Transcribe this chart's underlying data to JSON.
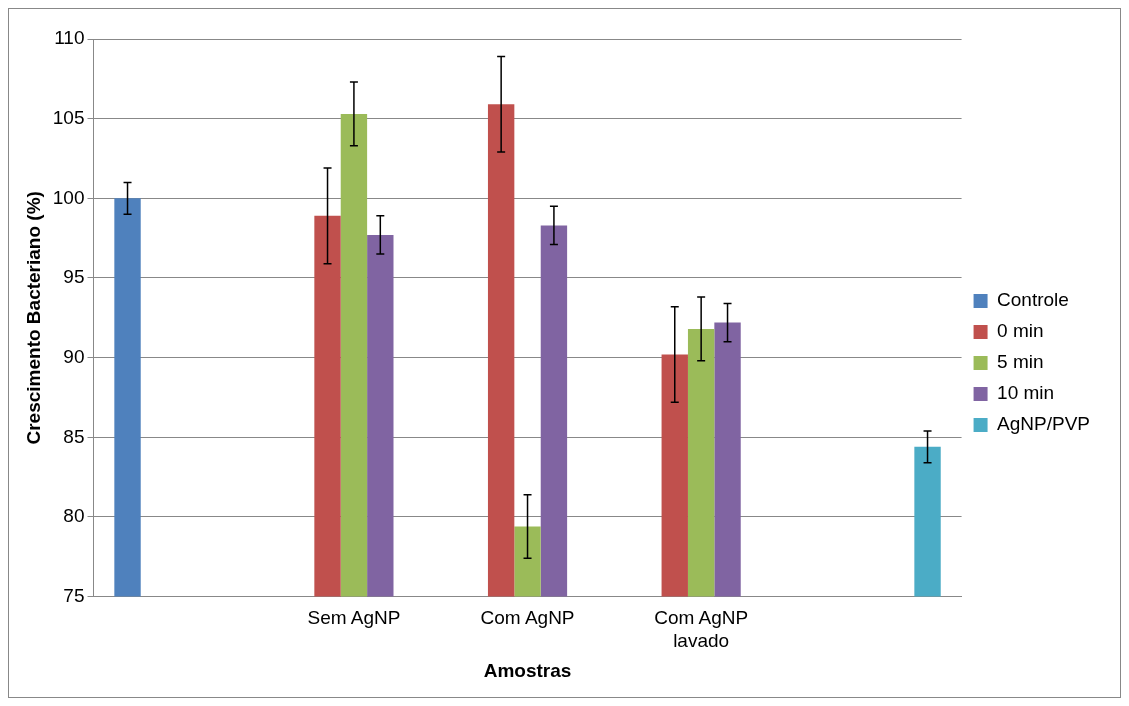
{
  "chart_data": {
    "type": "bar",
    "xlabel": "Amostras",
    "ylabel": "Crescimento Bacteriano (%)",
    "categories": [
      null,
      "Sem AgNP",
      "Com AgNP",
      "Com AgNP\nlavado",
      null
    ],
    "series": [
      {
        "name": "Controle",
        "color": "#4f81bd",
        "values": [
          100,
          null,
          null,
          null,
          null
        ],
        "errors": [
          1,
          null,
          null,
          null,
          null
        ]
      },
      {
        "name": "0 min",
        "color": "#c0504d",
        "values": [
          null,
          98.9,
          105.9,
          90.2,
          null
        ],
        "errors": [
          null,
          3,
          3,
          3,
          null
        ]
      },
      {
        "name": "5 min",
        "color": "#9bbb59",
        "values": [
          null,
          105.3,
          79.4,
          91.8,
          null
        ],
        "errors": [
          null,
          2,
          2,
          2,
          null
        ]
      },
      {
        "name": "10 min",
        "color": "#8064a2",
        "values": [
          null,
          97.7,
          98.3,
          92.2,
          null
        ],
        "errors": [
          null,
          1.2,
          1.2,
          1.2,
          null
        ]
      },
      {
        "name": "AgNP/PVP",
        "color": "#4bacc6",
        "values": [
          null,
          null,
          null,
          null,
          84.4
        ],
        "errors": [
          null,
          null,
          null,
          null,
          1
        ]
      }
    ],
    "ylim": [
      75,
      110
    ],
    "yticks": [
      75,
      80,
      85,
      90,
      95,
      100,
      105,
      110
    ],
    "grid": "y",
    "legend": "right"
  }
}
